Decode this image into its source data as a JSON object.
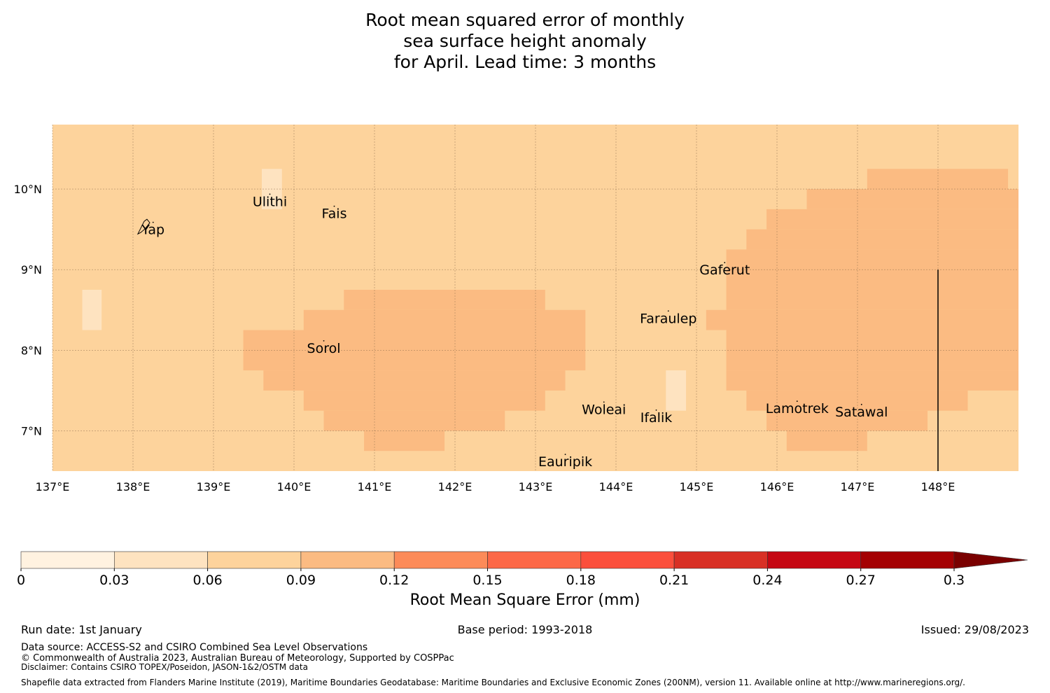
{
  "title": {
    "line1": "Root mean squared error of monthly",
    "line2": "sea surface height anomaly",
    "line3": "for April. Lead time: 3 months"
  },
  "map": {
    "lat_range": [
      6.5,
      10.8
    ],
    "lon_range": [
      137.0,
      149.0
    ],
    "lat_ticks": [
      {
        "value": 10,
        "label": "10°N"
      },
      {
        "value": 9,
        "label": "9°N"
      },
      {
        "value": 8,
        "label": "8°N"
      },
      {
        "value": 7,
        "label": "7°N"
      }
    ],
    "lon_ticks": [
      {
        "value": 137,
        "label": "137°E"
      },
      {
        "value": 138,
        "label": "138°E"
      },
      {
        "value": 139,
        "label": "139°E"
      },
      {
        "value": 140,
        "label": "140°E"
      },
      {
        "value": 141,
        "label": "141°E"
      },
      {
        "value": 142,
        "label": "142°E"
      },
      {
        "value": 143,
        "label": "143°E"
      },
      {
        "value": 144,
        "label": "144°E"
      },
      {
        "value": 145,
        "label": "145°E"
      },
      {
        "value": 146,
        "label": "146°E"
      },
      {
        "value": 147,
        "label": "147°E"
      },
      {
        "value": 148,
        "label": "148°E"
      }
    ],
    "background_rmse_band": "0.06-0.09",
    "islands": [
      {
        "name": "Yap",
        "lon": 138.25,
        "lat": 9.5
      },
      {
        "name": "Ulithi",
        "lon": 139.7,
        "lat": 9.85
      },
      {
        "name": "Fais",
        "lon": 140.5,
        "lat": 9.7
      },
      {
        "name": "Gaferut",
        "lon": 145.35,
        "lat": 9.0
      },
      {
        "name": "Faraulep",
        "lon": 144.65,
        "lat": 8.4
      },
      {
        "name": "Sorol",
        "lon": 140.37,
        "lat": 8.03
      },
      {
        "name": "Woleai",
        "lon": 143.85,
        "lat": 7.27
      },
      {
        "name": "Ifalik",
        "lon": 144.5,
        "lat": 7.17
      },
      {
        "name": "Lamotrek",
        "lon": 146.25,
        "lat": 7.28
      },
      {
        "name": "Satawal",
        "lon": 147.05,
        "lat": 7.24
      },
      {
        "name": "Eauripik",
        "lon": 143.37,
        "lat": 6.62
      }
    ],
    "boundary_line": {
      "lon": 148.0,
      "lat_from": 6.5,
      "lat_to": 9.0
    },
    "regions": [
      {
        "band": "0.03-0.06",
        "rows": [
          [
            9.75,
            10.25,
            139.6,
            139.85
          ],
          [
            8.25,
            8.75,
            137.37,
            137.61
          ],
          [
            7.25,
            7.75,
            144.62,
            144.87
          ]
        ]
      },
      {
        "band": "0.09-0.12",
        "rows": [
          [
            8.5,
            8.75,
            140.62,
            143.12
          ],
          [
            8.25,
            8.5,
            140.12,
            143.62
          ],
          [
            7.75,
            8.25,
            139.37,
            143.62
          ],
          [
            7.5,
            7.75,
            139.62,
            143.37
          ],
          [
            7.25,
            7.5,
            140.12,
            143.12
          ],
          [
            7.0,
            7.25,
            140.37,
            142.62
          ],
          [
            6.75,
            7.0,
            140.87,
            141.87
          ],
          [
            10.0,
            10.25,
            147.12,
            148.87
          ],
          [
            9.75,
            10.0,
            146.37,
            149.0
          ],
          [
            9.5,
            9.75,
            145.87,
            149.0
          ],
          [
            9.25,
            9.5,
            145.62,
            149.0
          ],
          [
            8.5,
            9.25,
            145.37,
            149.0
          ],
          [
            8.25,
            8.5,
            145.12,
            149.0
          ],
          [
            7.75,
            8.25,
            145.37,
            149.0
          ],
          [
            7.5,
            7.75,
            145.37,
            149.0
          ],
          [
            7.25,
            7.5,
            145.62,
            148.37
          ],
          [
            7.0,
            7.25,
            145.87,
            147.87
          ],
          [
            6.75,
            7.0,
            146.12,
            147.12
          ]
        ]
      }
    ]
  },
  "colorbar": {
    "ticks": [
      "0",
      "0.03",
      "0.06",
      "0.09",
      "0.12",
      "0.15",
      "0.18",
      "0.21",
      "0.24",
      "0.27",
      "0.3"
    ],
    "colors": [
      "#fff2e0",
      "#fee3c0",
      "#fdd39c",
      "#fbbb82",
      "#fc8b59",
      "#fc6847",
      "#fb4f3c",
      "#d83025",
      "#c50713",
      "#a40103"
    ],
    "extend_color": "#7a0000",
    "label": "Root Mean Square Error (mm)"
  },
  "footer": {
    "run_date": "Run date: 1st January",
    "base_period": "Base period: 1993-2018",
    "issued": "Issued: 29/08/2023",
    "data_source": "Data source: ACCESS-S2 and CSIRO Combined Sea Level Observations",
    "copyright": "© Commonwealth of Australia 2023, Australian Bureau of Meteorology, Supported by COSPPac",
    "disclaimer": "Disclaimer: Contains CSIRO TOPEX/Poseidon, JASON-1&2/OSTM data",
    "shapefile": "Shapefile data extracted from Flanders Marine Institute (2019), Maritime Boundaries Geodatabase: Maritime Boundaries and Exclusive Economic Zones (200NM), version 11. Available online at http://www.marineregions.org/."
  }
}
